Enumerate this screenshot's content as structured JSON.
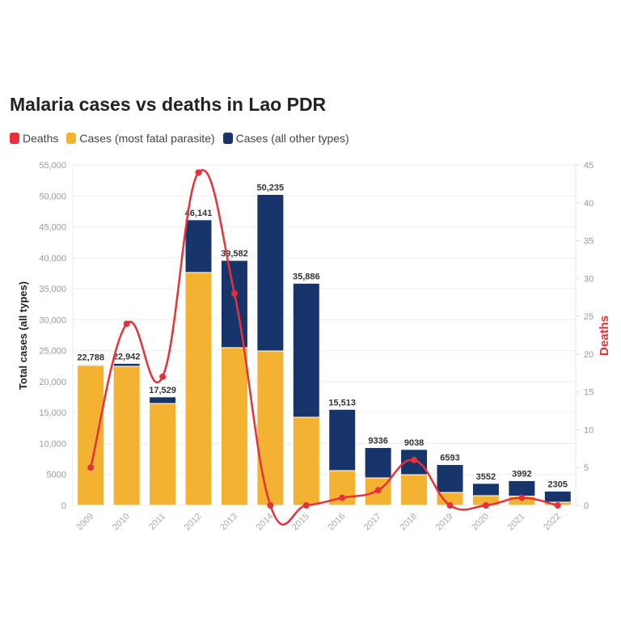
{
  "chart_data": {
    "type": "bar",
    "title": "Malaria cases vs deaths in Lao PDR",
    "categories": [
      "2009",
      "2010",
      "2011",
      "2012",
      "2013",
      "2014",
      "2015",
      "2016",
      "2017",
      "2018",
      "2019",
      "2020",
      "2021",
      "2022"
    ],
    "totals": [
      22788,
      22942,
      17529,
      46141,
      39582,
      50235,
      35886,
      15513,
      9336,
      9038,
      6593,
      3552,
      3992,
      2305
    ],
    "total_labels": [
      "22,788",
      "22,942",
      "17,529",
      "46,141",
      "39,582",
      "50,235",
      "35,886",
      "15,513",
      "9336",
      "9038",
      "6593",
      "3552",
      "3992",
      "2305"
    ],
    "series": [
      {
        "name": "Deaths",
        "type": "line",
        "axis": "right",
        "color": "#e8303a",
        "values": [
          5,
          24,
          17,
          44,
          28,
          0,
          0,
          1,
          2,
          6,
          0,
          0,
          1,
          0
        ]
      },
      {
        "name": "Cases (most fatal parasite)",
        "type": "bar",
        "axis": "left",
        "color": "#f4b233",
        "values": [
          22600,
          22470,
          16460,
          37630,
          25480,
          24950,
          14240,
          5620,
          4440,
          4960,
          2090,
          1570,
          1500,
          520
        ]
      },
      {
        "name": "Cases (all other types)",
        "type": "bar",
        "axis": "left",
        "color": "#18356b",
        "values": [
          188,
          472,
          1069,
          8511,
          14102,
          25285,
          21646,
          9893,
          4896,
          4078,
          4503,
          1982,
          2492,
          1785
        ]
      }
    ],
    "ylabel": "Total cases (all types)",
    "y2label": "Deaths",
    "ylim": [
      0,
      55000
    ],
    "y2lim": [
      0,
      45
    ],
    "yticks": [
      0,
      5000,
      10000,
      15000,
      20000,
      25000,
      30000,
      35000,
      40000,
      45000,
      50000,
      55000
    ],
    "ytick_labels": [
      "0",
      "5000",
      "10,000",
      "15,000",
      "20,000",
      "25,000",
      "30,000",
      "35,000",
      "40,000",
      "45,000",
      "50,000",
      "55,000"
    ],
    "y2ticks": [
      0,
      5,
      10,
      15,
      20,
      25,
      30,
      35,
      40,
      45
    ],
    "grid": true,
    "legend_position": "top-left"
  }
}
